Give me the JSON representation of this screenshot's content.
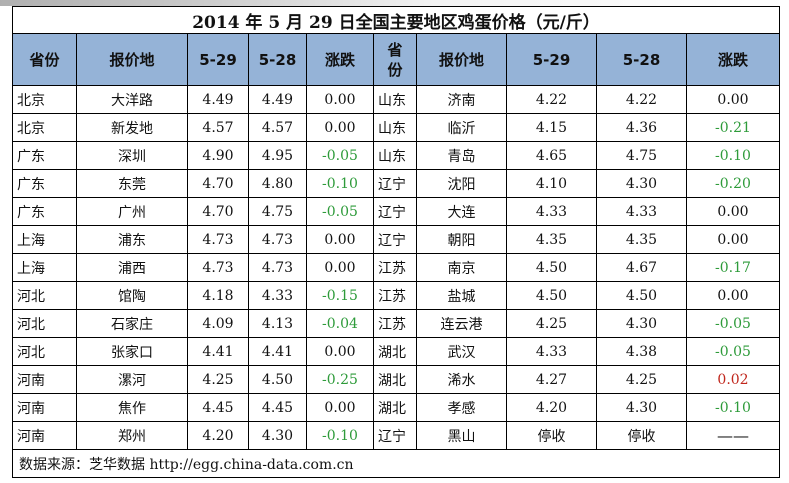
{
  "title": "2014 年 5 月 29 日全国主要地区鸡蛋价格（元/斤）",
  "headers": {
    "prov": "省份",
    "place": "报价地",
    "d1": "5-29",
    "d2": "5-28",
    "chg": "涨跌",
    "prov2": "省份",
    "place2": "报价地",
    "d1b": "5-29",
    "d2b": "5-28",
    "chg2": "涨跌"
  },
  "colors": {
    "header_bg": "#95b3d7",
    "down": "#2e9b3a",
    "up": "#c0261c"
  },
  "rows": [
    {
      "l": {
        "prov": "北京",
        "place": "大洋路",
        "p29": "4.49",
        "p28": "4.49",
        "chg": "0.00",
        "dir": "flat"
      },
      "r": {
        "prov": "山东",
        "place": "济南",
        "p29": "4.22",
        "p28": "4.22",
        "chg": "0.00",
        "dir": "flat"
      }
    },
    {
      "l": {
        "prov": "北京",
        "place": "新发地",
        "p29": "4.57",
        "p28": "4.57",
        "chg": "0.00",
        "dir": "flat"
      },
      "r": {
        "prov": "山东",
        "place": "临沂",
        "p29": "4.15",
        "p28": "4.36",
        "chg": "-0.21",
        "dir": "down"
      }
    },
    {
      "l": {
        "prov": "广东",
        "place": "深圳",
        "p29": "4.90",
        "p28": "4.95",
        "chg": "-0.05",
        "dir": "down"
      },
      "r": {
        "prov": "山东",
        "place": "青岛",
        "p29": "4.65",
        "p28": "4.75",
        "chg": "-0.10",
        "dir": "down"
      }
    },
    {
      "l": {
        "prov": "广东",
        "place": "东莞",
        "p29": "4.70",
        "p28": "4.80",
        "chg": "-0.10",
        "dir": "down"
      },
      "r": {
        "prov": "辽宁",
        "place": "沈阳",
        "p29": "4.10",
        "p28": "4.30",
        "chg": "-0.20",
        "dir": "down"
      }
    },
    {
      "l": {
        "prov": "广东",
        "place": "广州",
        "p29": "4.70",
        "p28": "4.75",
        "chg": "-0.05",
        "dir": "down"
      },
      "r": {
        "prov": "辽宁",
        "place": "大连",
        "p29": "4.33",
        "p28": "4.33",
        "chg": "0.00",
        "dir": "flat"
      }
    },
    {
      "l": {
        "prov": "上海",
        "place": "浦东",
        "p29": "4.73",
        "p28": "4.73",
        "chg": "0.00",
        "dir": "flat"
      },
      "r": {
        "prov": "辽宁",
        "place": "朝阳",
        "p29": "4.35",
        "p28": "4.35",
        "chg": "0.00",
        "dir": "flat"
      }
    },
    {
      "l": {
        "prov": "上海",
        "place": "浦西",
        "p29": "4.73",
        "p28": "4.73",
        "chg": "0.00",
        "dir": "flat"
      },
      "r": {
        "prov": "江苏",
        "place": "南京",
        "p29": "4.50",
        "p28": "4.67",
        "chg": "-0.17",
        "dir": "down"
      }
    },
    {
      "l": {
        "prov": "河北",
        "place": "馆陶",
        "p29": "4.18",
        "p28": "4.33",
        "chg": "-0.15",
        "dir": "down"
      },
      "r": {
        "prov": "江苏",
        "place": "盐城",
        "p29": "4.50",
        "p28": "4.50",
        "chg": "0.00",
        "dir": "flat"
      }
    },
    {
      "l": {
        "prov": "河北",
        "place": "石家庄",
        "p29": "4.09",
        "p28": "4.13",
        "chg": "-0.04",
        "dir": "down"
      },
      "r": {
        "prov": "江苏",
        "place": "连云港",
        "p29": "4.25",
        "p28": "4.30",
        "chg": "-0.05",
        "dir": "down"
      }
    },
    {
      "l": {
        "prov": "河北",
        "place": "张家口",
        "p29": "4.41",
        "p28": "4.41",
        "chg": "0.00",
        "dir": "flat"
      },
      "r": {
        "prov": "湖北",
        "place": "武汉",
        "p29": "4.33",
        "p28": "4.38",
        "chg": "-0.05",
        "dir": "down"
      }
    },
    {
      "l": {
        "prov": "河南",
        "place": "漯河",
        "p29": "4.25",
        "p28": "4.50",
        "chg": "-0.25",
        "dir": "down"
      },
      "r": {
        "prov": "湖北",
        "place": "浠水",
        "p29": "4.27",
        "p28": "4.25",
        "chg": "0.02",
        "dir": "up"
      }
    },
    {
      "l": {
        "prov": "河南",
        "place": "焦作",
        "p29": "4.45",
        "p28": "4.45",
        "chg": "0.00",
        "dir": "flat"
      },
      "r": {
        "prov": "湖北",
        "place": "孝感",
        "p29": "4.20",
        "p28": "4.30",
        "chg": "-0.10",
        "dir": "down"
      }
    },
    {
      "l": {
        "prov": "河南",
        "place": "郑州",
        "p29": "4.20",
        "p28": "4.30",
        "chg": "-0.10",
        "dir": "down"
      },
      "r": {
        "prov": "辽宁",
        "place": "黑山",
        "p29": "停收",
        "p28": "停收",
        "chg": "——",
        "dir": "dash"
      }
    }
  ],
  "source": "数据来源：芝华数据 http://egg.china-data.com.cn"
}
